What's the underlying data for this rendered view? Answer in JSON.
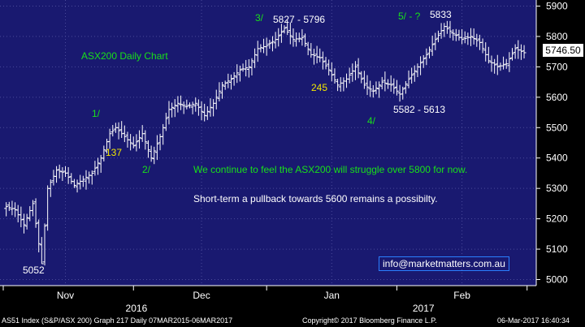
{
  "chart_data": {
    "type": "candlestick",
    "title": "ASX200 Daily Chart",
    "ylim": [
      4980,
      5920
    ],
    "y_ticks": [
      5000,
      5100,
      5200,
      5300,
      5400,
      5500,
      5600,
      5700,
      5800,
      5900
    ],
    "x_month_ticks": [
      {
        "label": "Nov",
        "day": 20
      },
      {
        "label": "Dec",
        "day": 66
      },
      {
        "label": "Jan",
        "day": 110
      },
      {
        "label": "Feb",
        "day": 154
      }
    ],
    "year_labels": [
      {
        "label": "2016",
        "day": 44
      },
      {
        "label": "2017",
        "day": 141
      }
    ],
    "last_price": "5746.50",
    "points": [
      [
        0,
        5240
      ],
      [
        3,
        5230
      ],
      [
        6,
        5180
      ],
      [
        9,
        5250
      ],
      [
        12,
        5052
      ],
      [
        14,
        5300
      ],
      [
        17,
        5360
      ],
      [
        20,
        5350
      ],
      [
        23,
        5310
      ],
      [
        26,
        5330
      ],
      [
        29,
        5350
      ],
      [
        32,
        5400
      ],
      [
        35,
        5480
      ],
      [
        37,
        5500
      ],
      [
        40,
        5470
      ],
      [
        43,
        5440
      ],
      [
        46,
        5480
      ],
      [
        49,
        5400
      ],
      [
        52,
        5470
      ],
      [
        55,
        5560
      ],
      [
        58,
        5580
      ],
      [
        61,
        5570
      ],
      [
        64,
        5580
      ],
      [
        67,
        5540
      ],
      [
        70,
        5580
      ],
      [
        73,
        5640
      ],
      [
        76,
        5660
      ],
      [
        79,
        5690
      ],
      [
        82,
        5700
      ],
      [
        85,
        5760
      ],
      [
        88,
        5770
      ],
      [
        91,
        5790
      ],
      [
        94,
        5827
      ],
      [
        97,
        5790
      ],
      [
        100,
        5796
      ],
      [
        103,
        5740
      ],
      [
        106,
        5730
      ],
      [
        109,
        5690
      ],
      [
        112,
        5640
      ],
      [
        115,
        5660
      ],
      [
        118,
        5700
      ],
      [
        121,
        5640
      ],
      [
        124,
        5620
      ],
      [
        127,
        5650
      ],
      [
        130,
        5640
      ],
      [
        133,
        5610
      ],
      [
        136,
        5660
      ],
      [
        139,
        5700
      ],
      [
        142,
        5740
      ],
      [
        145,
        5790
      ],
      [
        148,
        5833
      ],
      [
        151,
        5810
      ],
      [
        154,
        5790
      ],
      [
        157,
        5800
      ],
      [
        160,
        5780
      ],
      [
        163,
        5720
      ],
      [
        166,
        5700
      ],
      [
        169,
        5710
      ],
      [
        172,
        5760
      ],
      [
        175,
        5746.5
      ]
    ]
  },
  "annotations": {
    "low_5052": "5052",
    "wave_1": "1/",
    "label_137": "137",
    "wave_2": "2/",
    "wave_3": "3/",
    "range_3": "5827 - 5796",
    "label_245": "245",
    "wave_4": "4/",
    "range_4": "5582 - 5613",
    "wave_5": "5/ - ?",
    "peak_5833": "5833",
    "commentary_1": "We continue to feel the ASX200 will struggle over 5800 for now.",
    "commentary_2": "Short-term a pullback towards 5600 remains a possibilty.",
    "email": "info@marketmatters.com.au"
  },
  "footer": {
    "index": "AS51 Index (S&P/ASX 200) Graph 217  Daily 07MAR2015-06MAR2017",
    "copyright": "Copyright© 2017 Bloomberg Finance L.P.",
    "timestamp": "06-Mar-2017 16:40:34"
  },
  "colors": {
    "plot_bg": "#191970",
    "bars": "#ffffff",
    "grid": "#4a4a9a",
    "green_text": "#19e019",
    "yellow_text": "#f2e600"
  }
}
